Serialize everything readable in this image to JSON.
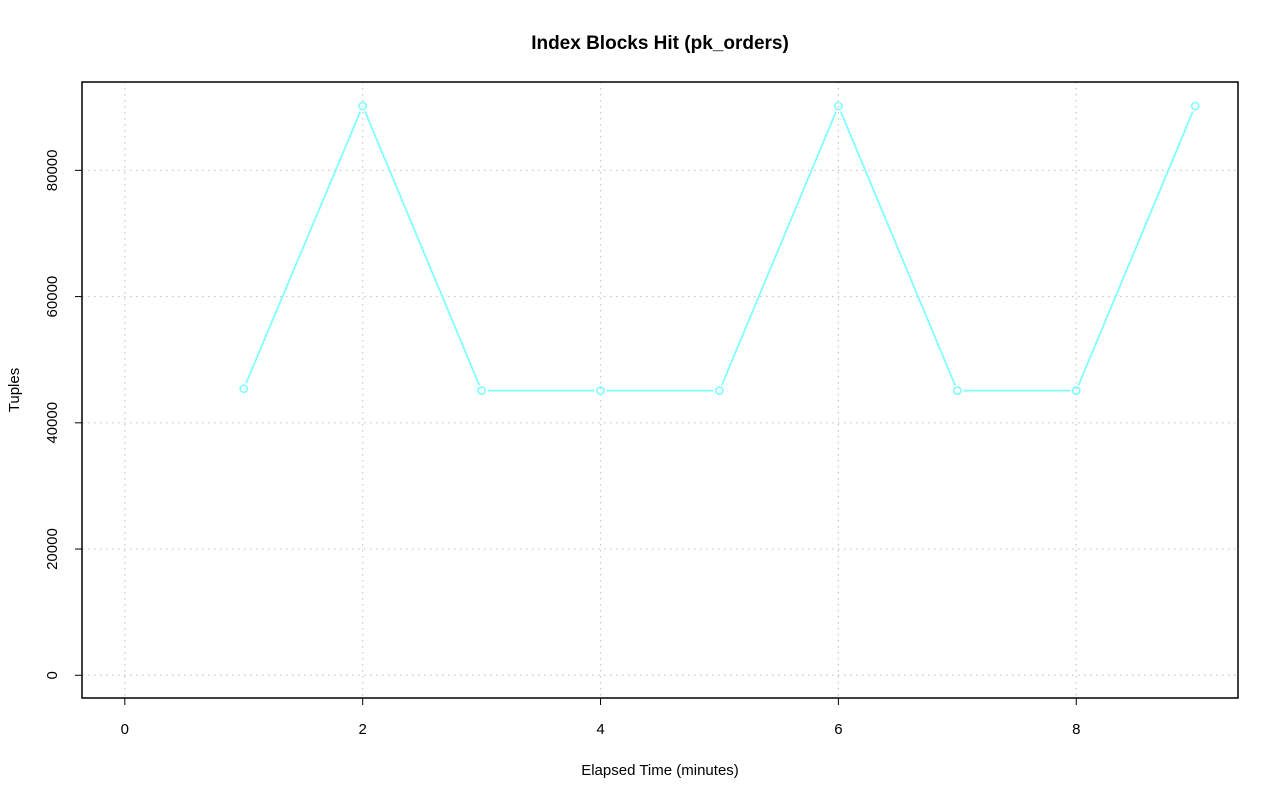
{
  "chart_data": {
    "type": "line",
    "title": "Index Blocks Hit (pk_orders)",
    "xlabel": "Elapsed Time (minutes)",
    "ylabel": "Tuples",
    "xlim": [
      -0.36,
      9.36
    ],
    "ylim": [
      -3600,
      94000
    ],
    "x_ticks": [
      0,
      2,
      4,
      6,
      8
    ],
    "y_ticks": [
      0,
      20000,
      40000,
      60000,
      80000
    ],
    "grid": true,
    "series": [
      {
        "color": "#7fffff",
        "x": [
          1,
          2,
          3,
          4,
          5,
          6,
          7,
          8,
          9
        ],
        "values": [
          45400,
          90200,
          45100,
          45100,
          45100,
          90200,
          45100,
          45100,
          90200
        ]
      }
    ]
  }
}
